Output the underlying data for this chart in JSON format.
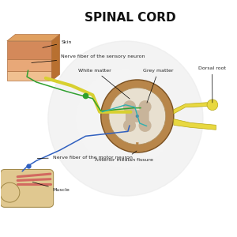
{
  "title": "SPINAL CORD",
  "title_fontsize": 11,
  "title_fontweight": "bold",
  "background_color": "#ffffff",
  "labels": {
    "skin": "Skin",
    "sensory_nerve": "Nerve fiber of the sensory neuron",
    "motor_nerve": "Nerve fiber of the motor neuron",
    "muscle": "Muscle",
    "white_matter": "White matter",
    "grey_matter": "Grey matter",
    "dorsal_root": "Dorsal root",
    "anterior_fissure": "Anterior median fissure"
  },
  "colors": {
    "skin_top": "#d4895a",
    "skin_mid": "#e8a878",
    "skin_bot": "#f0c090",
    "skin_outline": "#b07040",
    "cord_outer": "#b8864a",
    "cord_inner": "#d4b896",
    "grey_matter_color": "#c8b49a",
    "white_matter_color": "#e8e0d0",
    "nerve_yellow": "#d8d030",
    "nerve_green": "#30a030",
    "nerve_blue": "#3060c0",
    "nerve_cyan": "#30b0b0",
    "dorsal_yellow": "#e8d840",
    "dorsal_outline": "#b8a818",
    "ankle_bone": "#e0c890",
    "ankle_bone_outline": "#a08848",
    "ankle_muscle": "#d05858",
    "label_color": "#222222",
    "label_fontsize": 4.5,
    "watermark_color": "#ebebeb"
  }
}
